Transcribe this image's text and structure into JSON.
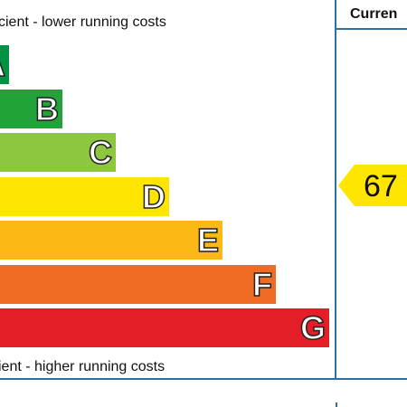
{
  "texts": {
    "top_label": "cient - lower running costs",
    "bottom_label": "ient - higher running costs",
    "header": "Curren"
  },
  "chart_data": {
    "type": "bar",
    "categories": [
      "A",
      "B",
      "C",
      "D",
      "E",
      "F",
      "G"
    ],
    "colors": [
      "#009343",
      "#21a33a",
      "#8dc63f",
      "#ffe500",
      "#fcb814",
      "#f06b24",
      "#e31e26"
    ],
    "current": {
      "value": "67",
      "color": "#ffe500"
    }
  }
}
